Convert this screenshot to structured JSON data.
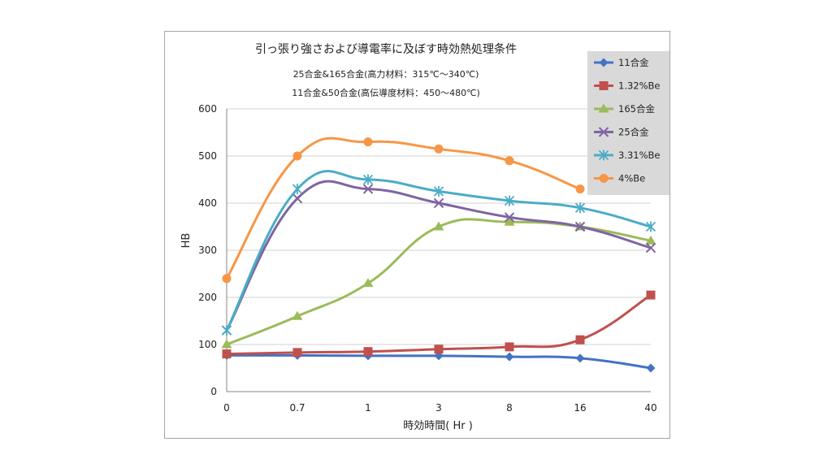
{
  "chart_data": {
    "type": "line",
    "title": "引っ張り強さおよび導電率に及ぼす時効熱処理条件",
    "subtitles": [
      "25合金&165合金(高力材料：315℃～340℃)",
      "11合金&50合金(高伝導度材料：450～480℃)"
    ],
    "xlabel": "時効時間( Hr )",
    "ylabel": "HB",
    "categories": [
      "0",
      "0.7",
      "1",
      "3",
      "8",
      "16",
      "40"
    ],
    "ylim": [
      0,
      600
    ],
    "yticks": [
      "0",
      "100",
      "200",
      "300",
      "400",
      "500",
      "600"
    ],
    "grid": true,
    "legend_position": "top-right",
    "series": [
      {
        "name": "11合金",
        "color": "#4472C4",
        "marker": "diamond",
        "values": [
          77,
          77,
          76,
          76,
          74,
          71,
          50
        ]
      },
      {
        "name": "1.32%Be",
        "color": "#C0504D",
        "marker": "square",
        "values": [
          80,
          83,
          85,
          90,
          95,
          110,
          205
        ]
      },
      {
        "name": "165合金",
        "color": "#9BBB59",
        "marker": "triangle",
        "values": [
          100,
          160,
          230,
          350,
          360,
          350,
          320
        ]
      },
      {
        "name": "25合金",
        "color": "#8064A2",
        "marker": "x",
        "values": [
          130,
          410,
          430,
          400,
          370,
          350,
          305
        ]
      },
      {
        "name": "3.31%Be",
        "color": "#4BACC6",
        "marker": "star",
        "values": [
          130,
          430,
          450,
          425,
          405,
          390,
          350
        ]
      },
      {
        "name": "4%Be",
        "color": "#F79646",
        "marker": "circle",
        "values": [
          240,
          500,
          530,
          515,
          490,
          430,
          null
        ]
      }
    ]
  }
}
